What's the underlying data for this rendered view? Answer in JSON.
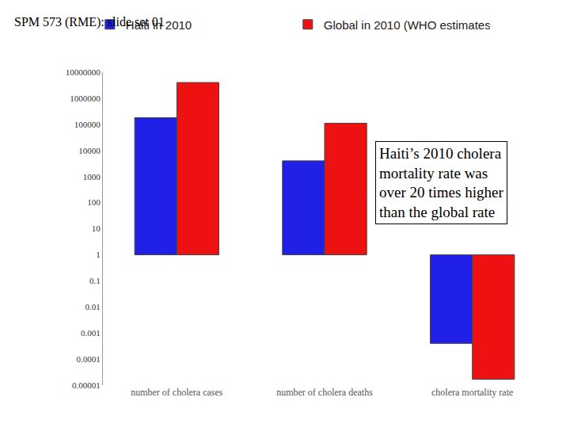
{
  "chart_data": {
    "type": "bar",
    "title": "SPM 573 (RME): slide set 01",
    "categories": [
      "number of cholera cases",
      "number of cholera deaths",
      "cholera mortality rate"
    ],
    "series": [
      {
        "name": "Haiti in 2010",
        "color": "#1f1fe6",
        "values": [
          179000,
          3990,
          0.0004
        ]
      },
      {
        "name": "Global in 2010 (WHO estimates)",
        "color": "#ee1111",
        "values": [
          4000000,
          110000,
          1.7e-05
        ]
      }
    ],
    "base": 1,
    "log": "y",
    "ylim": [
      1e-05,
      10000000
    ],
    "yticks": [
      {
        "value": 1e-05,
        "label": "0.00001"
      },
      0.0001,
      0.001,
      0.01,
      0.1,
      1,
      10,
      100,
      1000,
      10000,
      100000,
      1000000,
      10000000
    ],
    "grid": false,
    "legend": "top",
    "annotations": [
      {
        "lines": [
          "Haiti’s 2010 cholera",
          "mortality rate was",
          "over 20 times higher",
          "than the global rate"
        ]
      }
    ]
  }
}
